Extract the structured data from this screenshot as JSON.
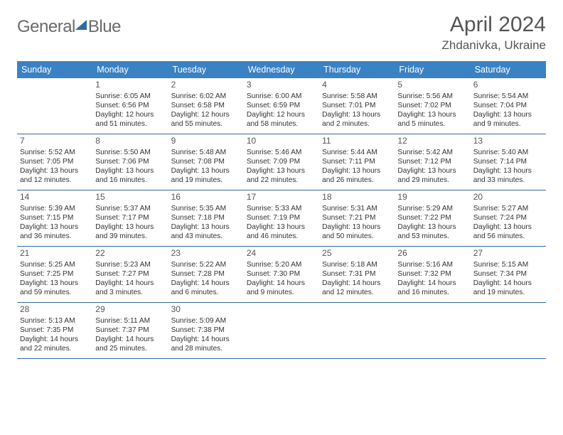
{
  "logo": {
    "text1": "General",
    "text2": "Blue"
  },
  "title": "April 2024",
  "location": "Zhdanivka, Ukraine",
  "colors": {
    "header_bg": "#3b82c4",
    "header_text": "#ffffff",
    "row_border": "#2f6aa8",
    "body_text": "#333333",
    "title_text": "#555555"
  },
  "typography": {
    "title_fontsize": 30,
    "location_fontsize": 17,
    "dayheader_fontsize": 12.5,
    "daynum_fontsize": 12,
    "cell_fontsize": 10.2
  },
  "day_names": [
    "Sunday",
    "Monday",
    "Tuesday",
    "Wednesday",
    "Thursday",
    "Friday",
    "Saturday"
  ],
  "weeks": [
    [
      {
        "empty": true
      },
      {
        "num": "1",
        "sunrise": "Sunrise: 6:05 AM",
        "sunset": "Sunset: 6:56 PM",
        "daylight": "Daylight: 12 hours and 51 minutes."
      },
      {
        "num": "2",
        "sunrise": "Sunrise: 6:02 AM",
        "sunset": "Sunset: 6:58 PM",
        "daylight": "Daylight: 12 hours and 55 minutes."
      },
      {
        "num": "3",
        "sunrise": "Sunrise: 6:00 AM",
        "sunset": "Sunset: 6:59 PM",
        "daylight": "Daylight: 12 hours and 58 minutes."
      },
      {
        "num": "4",
        "sunrise": "Sunrise: 5:58 AM",
        "sunset": "Sunset: 7:01 PM",
        "daylight": "Daylight: 13 hours and 2 minutes."
      },
      {
        "num": "5",
        "sunrise": "Sunrise: 5:56 AM",
        "sunset": "Sunset: 7:02 PM",
        "daylight": "Daylight: 13 hours and 5 minutes."
      },
      {
        "num": "6",
        "sunrise": "Sunrise: 5:54 AM",
        "sunset": "Sunset: 7:04 PM",
        "daylight": "Daylight: 13 hours and 9 minutes."
      }
    ],
    [
      {
        "num": "7",
        "sunrise": "Sunrise: 5:52 AM",
        "sunset": "Sunset: 7:05 PM",
        "daylight": "Daylight: 13 hours and 12 minutes."
      },
      {
        "num": "8",
        "sunrise": "Sunrise: 5:50 AM",
        "sunset": "Sunset: 7:06 PM",
        "daylight": "Daylight: 13 hours and 16 minutes."
      },
      {
        "num": "9",
        "sunrise": "Sunrise: 5:48 AM",
        "sunset": "Sunset: 7:08 PM",
        "daylight": "Daylight: 13 hours and 19 minutes."
      },
      {
        "num": "10",
        "sunrise": "Sunrise: 5:46 AM",
        "sunset": "Sunset: 7:09 PM",
        "daylight": "Daylight: 13 hours and 22 minutes."
      },
      {
        "num": "11",
        "sunrise": "Sunrise: 5:44 AM",
        "sunset": "Sunset: 7:11 PM",
        "daylight": "Daylight: 13 hours and 26 minutes."
      },
      {
        "num": "12",
        "sunrise": "Sunrise: 5:42 AM",
        "sunset": "Sunset: 7:12 PM",
        "daylight": "Daylight: 13 hours and 29 minutes."
      },
      {
        "num": "13",
        "sunrise": "Sunrise: 5:40 AM",
        "sunset": "Sunset: 7:14 PM",
        "daylight": "Daylight: 13 hours and 33 minutes."
      }
    ],
    [
      {
        "num": "14",
        "sunrise": "Sunrise: 5:39 AM",
        "sunset": "Sunset: 7:15 PM",
        "daylight": "Daylight: 13 hours and 36 minutes."
      },
      {
        "num": "15",
        "sunrise": "Sunrise: 5:37 AM",
        "sunset": "Sunset: 7:17 PM",
        "daylight": "Daylight: 13 hours and 39 minutes."
      },
      {
        "num": "16",
        "sunrise": "Sunrise: 5:35 AM",
        "sunset": "Sunset: 7:18 PM",
        "daylight": "Daylight: 13 hours and 43 minutes."
      },
      {
        "num": "17",
        "sunrise": "Sunrise: 5:33 AM",
        "sunset": "Sunset: 7:19 PM",
        "daylight": "Daylight: 13 hours and 46 minutes."
      },
      {
        "num": "18",
        "sunrise": "Sunrise: 5:31 AM",
        "sunset": "Sunset: 7:21 PM",
        "daylight": "Daylight: 13 hours and 50 minutes."
      },
      {
        "num": "19",
        "sunrise": "Sunrise: 5:29 AM",
        "sunset": "Sunset: 7:22 PM",
        "daylight": "Daylight: 13 hours and 53 minutes."
      },
      {
        "num": "20",
        "sunrise": "Sunrise: 5:27 AM",
        "sunset": "Sunset: 7:24 PM",
        "daylight": "Daylight: 13 hours and 56 minutes."
      }
    ],
    [
      {
        "num": "21",
        "sunrise": "Sunrise: 5:25 AM",
        "sunset": "Sunset: 7:25 PM",
        "daylight": "Daylight: 13 hours and 59 minutes."
      },
      {
        "num": "22",
        "sunrise": "Sunrise: 5:23 AM",
        "sunset": "Sunset: 7:27 PM",
        "daylight": "Daylight: 14 hours and 3 minutes."
      },
      {
        "num": "23",
        "sunrise": "Sunrise: 5:22 AM",
        "sunset": "Sunset: 7:28 PM",
        "daylight": "Daylight: 14 hours and 6 minutes."
      },
      {
        "num": "24",
        "sunrise": "Sunrise: 5:20 AM",
        "sunset": "Sunset: 7:30 PM",
        "daylight": "Daylight: 14 hours and 9 minutes."
      },
      {
        "num": "25",
        "sunrise": "Sunrise: 5:18 AM",
        "sunset": "Sunset: 7:31 PM",
        "daylight": "Daylight: 14 hours and 12 minutes."
      },
      {
        "num": "26",
        "sunrise": "Sunrise: 5:16 AM",
        "sunset": "Sunset: 7:32 PM",
        "daylight": "Daylight: 14 hours and 16 minutes."
      },
      {
        "num": "27",
        "sunrise": "Sunrise: 5:15 AM",
        "sunset": "Sunset: 7:34 PM",
        "daylight": "Daylight: 14 hours and 19 minutes."
      }
    ],
    [
      {
        "num": "28",
        "sunrise": "Sunrise: 5:13 AM",
        "sunset": "Sunset: 7:35 PM",
        "daylight": "Daylight: 14 hours and 22 minutes."
      },
      {
        "num": "29",
        "sunrise": "Sunrise: 5:11 AM",
        "sunset": "Sunset: 7:37 PM",
        "daylight": "Daylight: 14 hours and 25 minutes."
      },
      {
        "num": "30",
        "sunrise": "Sunrise: 5:09 AM",
        "sunset": "Sunset: 7:38 PM",
        "daylight": "Daylight: 14 hours and 28 minutes."
      },
      {
        "empty": true
      },
      {
        "empty": true
      },
      {
        "empty": true
      },
      {
        "empty": true
      }
    ]
  ]
}
